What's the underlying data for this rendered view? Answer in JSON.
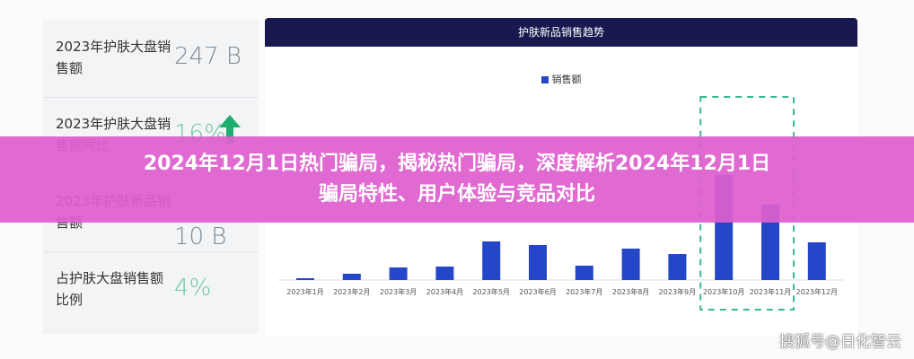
{
  "stats": [
    {
      "label": "2023年护肤大盘销售额",
      "value": "247 B"
    },
    {
      "label": "2023年护肤大盘销售额同比",
      "value": "16%",
      "trend": "up-arrow-icon"
    },
    {
      "label": "2023年护肤新品销售额",
      "value": "10 B"
    },
    {
      "label": "占护肤大盘销售额比例",
      "value": "4%"
    }
  ],
  "banner": {
    "line1": "2024年12月1日热门骗局，揭秘热门骗局，深度解析2024年12月1日",
    "line2": "骗局特性、用户体验与竞品对比"
  },
  "watermark": "搜狐号@日化智云",
  "colors": {
    "bar": "#2447c9",
    "header": "#181a4f",
    "banner": "#de5fcd",
    "highlight": "#3cb98a"
  },
  "chart_data": {
    "type": "bar",
    "title": "护肤新品销售趋势",
    "legend": [
      "销售额"
    ],
    "legend_position": "top",
    "categories": [
      "2023年1月",
      "2023年2月",
      "2023年3月",
      "2023年4月",
      "2023年5月",
      "2023年6月",
      "2023年7月",
      "2023年8月",
      "2023年9月",
      "2023年10月",
      "2023年11月",
      "2023年12月"
    ],
    "series": [
      {
        "name": "销售额",
        "values": [
          2,
          7,
          14,
          15,
          43,
          39,
          16,
          35,
          29,
          117,
          84,
          42
        ]
      }
    ],
    "highlighted": [
      "2023年10月",
      "2023年11月"
    ],
    "grid": false
  }
}
